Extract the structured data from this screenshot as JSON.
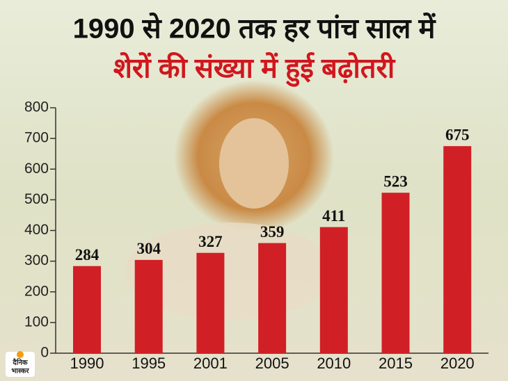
{
  "chart_data": {
    "type": "bar",
    "title": "1990 से 2020 तक हर पांच साल में",
    "subtitle": "शेरों की संख्या में हुई बढ़ोतरी",
    "categories": [
      "1990",
      "1995",
      "2001",
      "2005",
      "2010",
      "2015",
      "2020"
    ],
    "values": [
      284,
      304,
      327,
      359,
      411,
      523,
      675
    ],
    "color": "#d11f26",
    "ylim": [
      0,
      800
    ],
    "yticks": [
      0,
      100,
      200,
      300,
      400,
      500,
      600,
      700,
      800
    ]
  },
  "logo": [
    "दैनिक",
    "भास्कर"
  ]
}
